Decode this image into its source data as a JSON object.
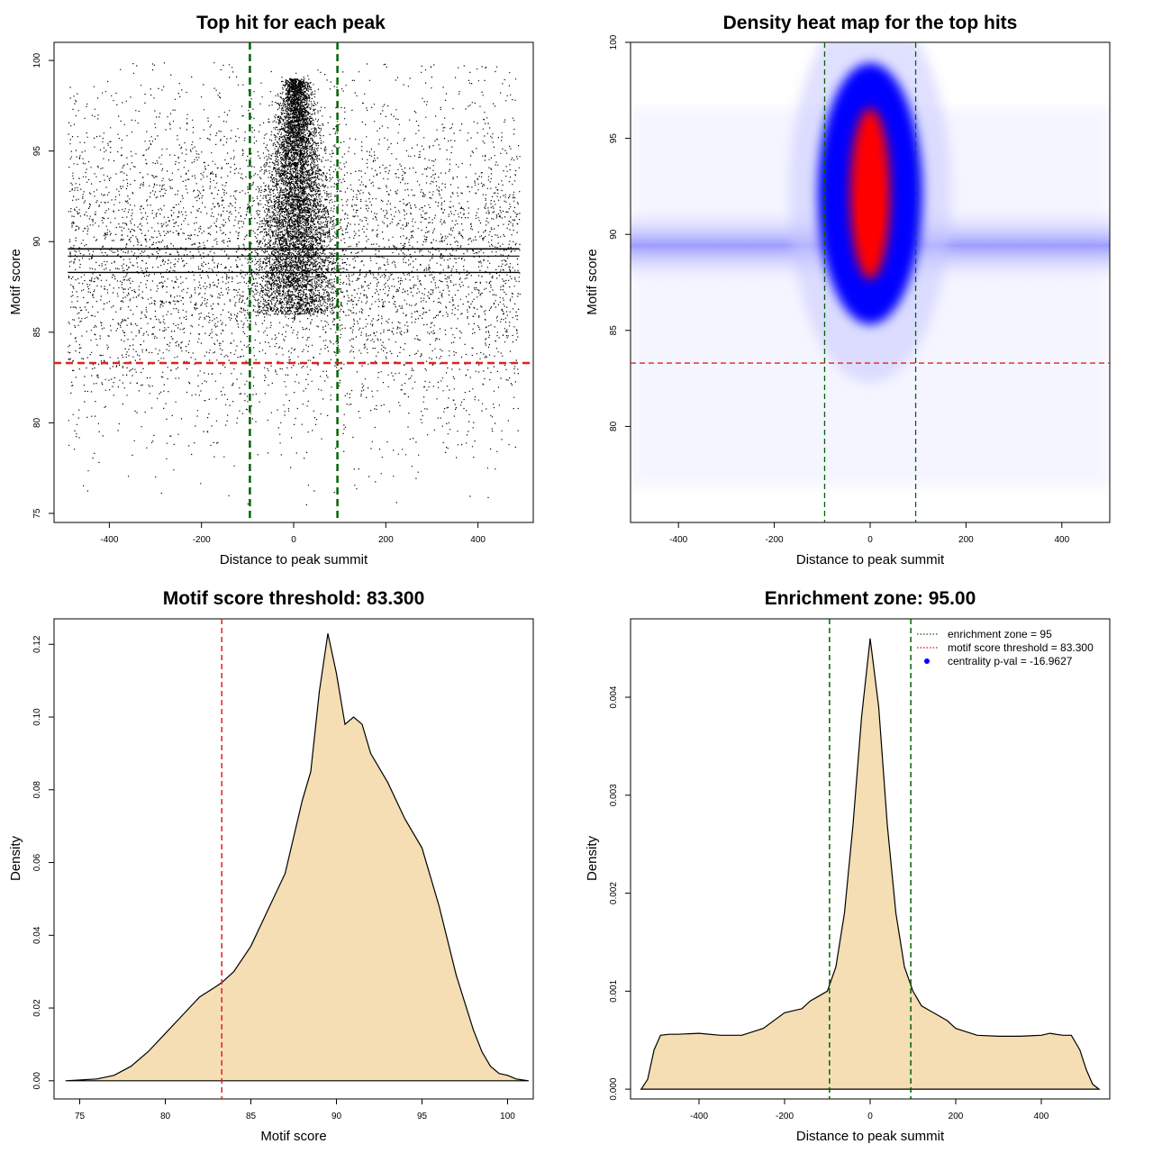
{
  "chart_data": [
    {
      "type": "scatter",
      "title": "Top hit for each peak",
      "xlabel": "Distance to peak summit",
      "ylabel": "Motif score",
      "xlim": [
        -520,
        520
      ],
      "ylim": [
        74.5,
        101
      ],
      "xticks": [
        -400,
        -200,
        0,
        200,
        400
      ],
      "yticks": [
        75,
        80,
        85,
        90,
        95,
        100
      ],
      "vlines": [
        -95,
        95
      ],
      "hline": 83.3,
      "description_points": "dense cloud of points spanning x -490..490 and y ~75..100, concentrated near x=0; horizontal bands at ~89.5 and ~88.3"
    },
    {
      "type": "heatmap",
      "title": "Density heat map for the top hits",
      "xlabel": "Distance to peak summit",
      "ylabel": "Motif score",
      "xlim": [
        -500,
        500
      ],
      "ylim": [
        75,
        100
      ],
      "xticks": [
        -400,
        -200,
        0,
        200,
        400
      ],
      "yticks": [
        80,
        85,
        90,
        95,
        100
      ],
      "vlines": [
        -95,
        95
      ],
      "hline": 83.3,
      "colors": [
        "#ffffff",
        "#0000ff",
        "#ff0000"
      ],
      "hotspots": [
        {
          "x": 0,
          "y": 92,
          "level": 1.0
        },
        {
          "x": 0,
          "y": 89.5,
          "level": 0.35
        }
      ]
    },
    {
      "type": "area",
      "title": "Motif score threshold: 83.300",
      "xlabel": "Motif score",
      "ylabel": "Density",
      "xlim": [
        73.5,
        101.5
      ],
      "ylim": [
        -0.005,
        0.127
      ],
      "xticks": [
        75,
        80,
        85,
        90,
        95,
        100
      ],
      "yticks": [
        0.0,
        0.02,
        0.04,
        0.06,
        0.08,
        0.1,
        0.12
      ],
      "ytick_labels": [
        "0.00",
        "0.02",
        "0.04",
        "0.06",
        "0.08",
        "0.10",
        "0.12"
      ],
      "vline": 83.3,
      "fill": "#f5deb3",
      "x": [
        74.2,
        76,
        77,
        78,
        79,
        80,
        81,
        82,
        83,
        83.3,
        84,
        85,
        86,
        87,
        87.5,
        88,
        88.5,
        89,
        89.5,
        90,
        90.5,
        91,
        91.5,
        92,
        93,
        94,
        95,
        96,
        97,
        98,
        98.5,
        99,
        99.5,
        100,
        100.5,
        101.2
      ],
      "y": [
        0,
        0.0005,
        0.0015,
        0.004,
        0.008,
        0.013,
        0.018,
        0.023,
        0.026,
        0.027,
        0.03,
        0.037,
        0.047,
        0.057,
        0.067,
        0.077,
        0.085,
        0.107,
        0.123,
        0.112,
        0.098,
        0.1,
        0.098,
        0.09,
        0.082,
        0.072,
        0.064,
        0.048,
        0.029,
        0.014,
        0.008,
        0.004,
        0.002,
        0.0015,
        0.0005,
        0
      ]
    },
    {
      "type": "area",
      "title": "Enrichment zone: 95.00",
      "xlabel": "Distance to peak summit",
      "ylabel": "Density",
      "xlim": [
        -560,
        560
      ],
      "ylim": [
        -0.0001,
        0.0048
      ],
      "xticks": [
        -400,
        -200,
        0,
        200,
        400
      ],
      "yticks": [
        0.0,
        0.001,
        0.002,
        0.003,
        0.004
      ],
      "ytick_labels": [
        "0.000",
        "0.001",
        "0.002",
        "0.003",
        "0.004"
      ],
      "vlines": [
        -95,
        95
      ],
      "fill": "#f5deb3",
      "x": [
        -535,
        -520,
        -505,
        -490,
        -470,
        -450,
        -400,
        -350,
        -300,
        -250,
        -200,
        -180,
        -160,
        -140,
        -120,
        -100,
        -80,
        -60,
        -40,
        -20,
        0,
        20,
        40,
        60,
        80,
        100,
        120,
        140,
        160,
        180,
        200,
        250,
        300,
        350,
        400,
        420,
        450,
        470,
        490,
        505,
        520,
        535
      ],
      "y": [
        0,
        0.0001,
        0.0004,
        0.00055,
        0.00056,
        0.00056,
        0.00057,
        0.00055,
        0.00055,
        0.00062,
        0.00078,
        0.0008,
        0.00082,
        0.0009,
        0.00095,
        0.001,
        0.00125,
        0.0018,
        0.0027,
        0.0038,
        0.0046,
        0.0039,
        0.0027,
        0.0018,
        0.00125,
        0.001,
        0.00085,
        0.0008,
        0.00075,
        0.0007,
        0.00062,
        0.00055,
        0.00054,
        0.00054,
        0.00055,
        0.00057,
        0.00055,
        0.00055,
        0.0004,
        0.0002,
        5e-05,
        0
      ],
      "legend": [
        {
          "label": "enrichment zone = 95",
          "color": "#006400",
          "style": "dotted-line"
        },
        {
          "label": "motif score threshold = 83.300",
          "color": "#ff0000",
          "style": "dotted-line"
        },
        {
          "label": "centrality p-val = -16.9627",
          "color": "#0000ff",
          "style": "point"
        }
      ]
    }
  ]
}
